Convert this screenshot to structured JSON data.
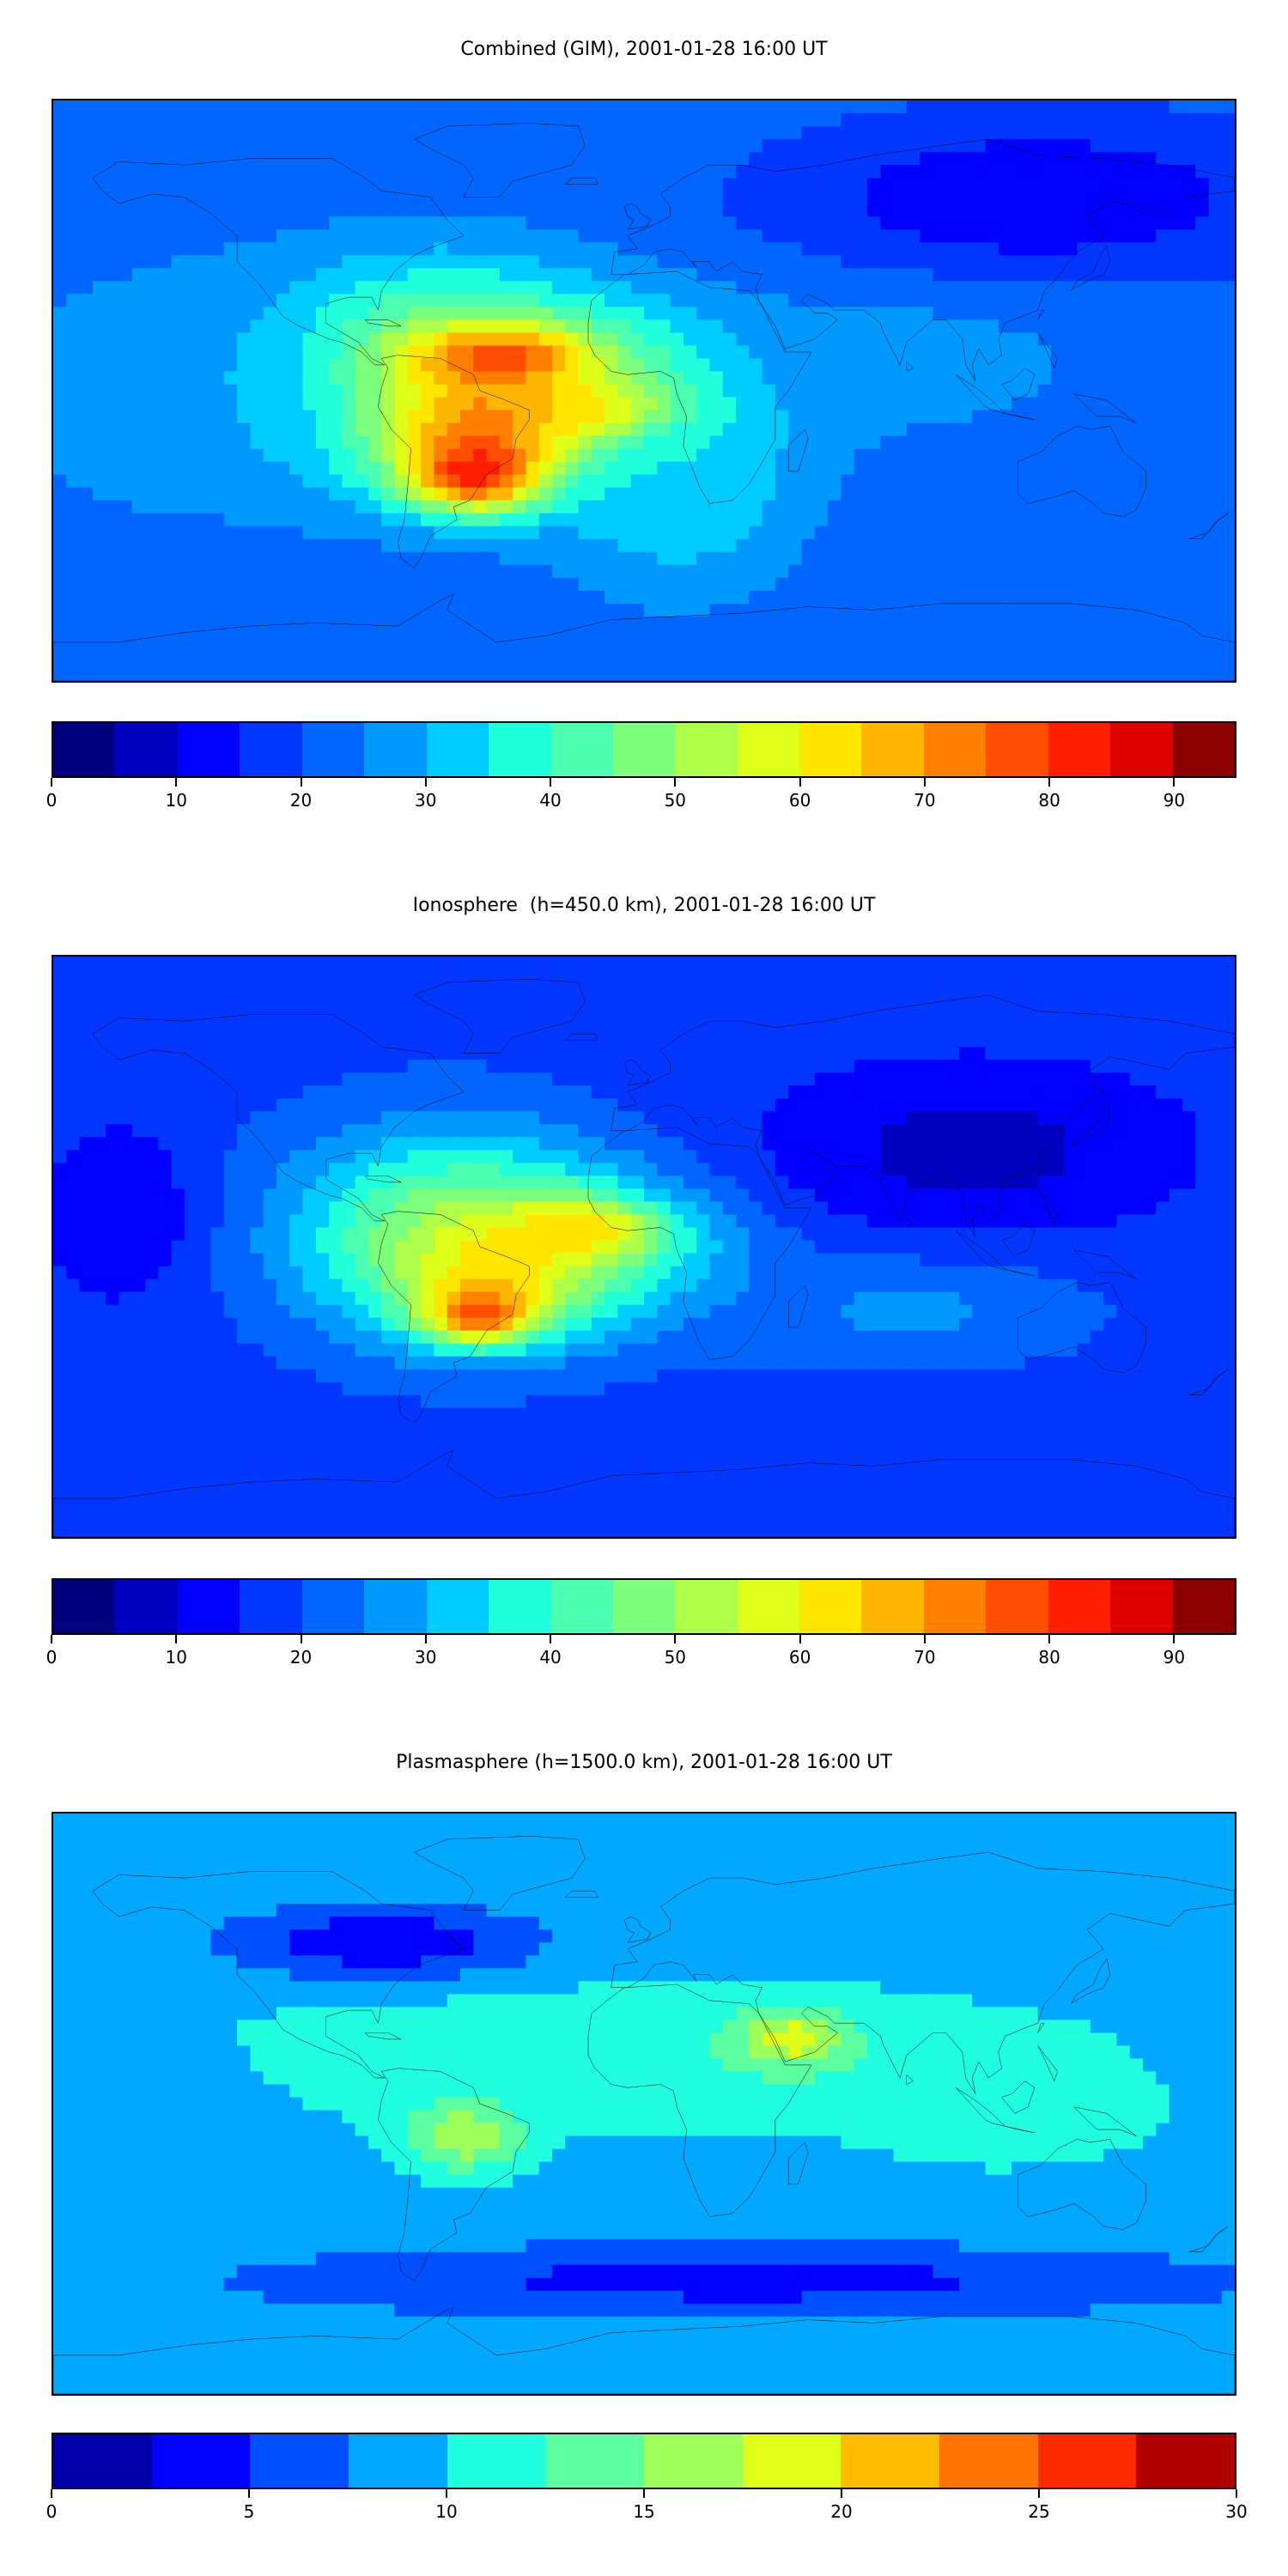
{
  "panels": [
    {
      "title": "Combined (GIM), 2001-01-28 16:00 UT",
      "colorbar": {
        "min": 0,
        "max": 95,
        "step": 5,
        "tick_values": [
          0,
          10,
          20,
          30,
          40,
          50,
          60,
          70,
          80,
          90
        ],
        "tick_labels": [
          "0",
          "10",
          "20",
          "30",
          "40",
          "50",
          "60",
          "70",
          "80",
          "90"
        ],
        "colors": [
          "#00007f",
          "#0000c0",
          "#0000ff",
          "#0036ff",
          "#0066ff",
          "#0099ff",
          "#00ccff",
          "#1fffdc",
          "#4cffb0",
          "#7cff7c",
          "#adff49",
          "#ddff19",
          "#ffe600",
          "#ffb600",
          "#ff8000",
          "#ff4e00",
          "#ff1f00",
          "#df0000",
          "#8b0000"
        ]
      },
      "field": {
        "background": 22,
        "blobs": [
          {
            "lon": -65,
            "lat": 5,
            "rx": 55,
            "ry": 35,
            "value": 55
          },
          {
            "lon": -20,
            "lat": 0,
            "rx": 60,
            "ry": 28,
            "value": 50
          },
          {
            "lon": -50,
            "lat": -10,
            "rx": 35,
            "ry": 22,
            "value": 75
          },
          {
            "lon": -45,
            "lat": 10,
            "rx": 30,
            "ry": 10,
            "value": 82
          },
          {
            "lon": -10,
            "lat": -8,
            "rx": 25,
            "ry": 12,
            "value": 80
          },
          {
            "lon": -50,
            "lat": -25,
            "rx": 22,
            "ry": 12,
            "value": 90
          },
          {
            "lon": 10,
            "lat": -30,
            "rx": 40,
            "ry": 35,
            "value": 35
          },
          {
            "lon": 80,
            "lat": 10,
            "rx": 60,
            "ry": 25,
            "value": 28
          },
          {
            "lon": -140,
            "lat": 0,
            "rx": 60,
            "ry": 40,
            "value": 30
          },
          {
            "lon": 120,
            "lat": 60,
            "rx": 80,
            "ry": 25,
            "value": 10
          }
        ]
      }
    },
    {
      "title": "Ionosphere  (h=450.0 km), 2001-01-28 16:00 UT",
      "colorbar": {
        "min": 0,
        "max": 95,
        "step": 5,
        "tick_values": [
          0,
          10,
          20,
          30,
          40,
          50,
          60,
          70,
          80,
          90
        ],
        "tick_labels": [
          "0",
          "10",
          "20",
          "30",
          "40",
          "50",
          "60",
          "70",
          "80",
          "90"
        ],
        "colors": [
          "#00007f",
          "#0000c0",
          "#0000ff",
          "#0036ff",
          "#0066ff",
          "#0099ff",
          "#00ccff",
          "#1fffdc",
          "#4cffb0",
          "#7cff7c",
          "#adff49",
          "#ddff19",
          "#ffe600",
          "#ffb600",
          "#ff8000",
          "#ff4e00",
          "#ff1f00",
          "#df0000",
          "#8b0000"
        ]
      },
      "field": {
        "background": 18,
        "blobs": [
          {
            "lon": -60,
            "lat": 5,
            "rx": 55,
            "ry": 35,
            "value": 45
          },
          {
            "lon": -20,
            "lat": 0,
            "rx": 55,
            "ry": 25,
            "value": 42
          },
          {
            "lon": -45,
            "lat": -5,
            "rx": 35,
            "ry": 22,
            "value": 62
          },
          {
            "lon": -20,
            "lat": 5,
            "rx": 25,
            "ry": 10,
            "value": 66
          },
          {
            "lon": -50,
            "lat": -20,
            "rx": 18,
            "ry": 10,
            "value": 78
          },
          {
            "lon": 100,
            "lat": 30,
            "rx": 70,
            "ry": 30,
            "value": 8
          },
          {
            "lon": -160,
            "lat": 10,
            "rx": 25,
            "ry": 30,
            "value": 10
          },
          {
            "lon": 80,
            "lat": -20,
            "rx": 60,
            "ry": 18,
            "value": 26
          }
        ]
      }
    },
    {
      "title": "Plasmasphere (h=1500.0 km), 2001-01-28 16:00 UT",
      "colorbar": {
        "min": 0,
        "max": 30,
        "step": 2.5,
        "tick_values": [
          0,
          5,
          10,
          15,
          20,
          25,
          30
        ],
        "tick_labels": [
          "0",
          "5",
          "10",
          "15",
          "20",
          "25",
          "30"
        ],
        "colors": [
          "#0000a8",
          "#0000ff",
          "#0050ff",
          "#00a8ff",
          "#1fffe0",
          "#5cffa0",
          "#9dff5a",
          "#e0ff18",
          "#ffbb00",
          "#ff7300",
          "#ff2a00",
          "#b00000"
        ]
      },
      "field": {
        "background": 9,
        "blobs": [
          {
            "lon": 0,
            "lat": 15,
            "rx": 150,
            "ry": 25,
            "value": 12
          },
          {
            "lon": 45,
            "lat": 20,
            "rx": 18,
            "ry": 10,
            "value": 19
          },
          {
            "lon": -55,
            "lat": -10,
            "rx": 20,
            "ry": 12,
            "value": 17
          },
          {
            "lon": 110,
            "lat": -5,
            "rx": 45,
            "ry": 15,
            "value": 12
          },
          {
            "lon": -150,
            "lat": 0,
            "rx": 30,
            "ry": 20,
            "value": 8
          },
          {
            "lon": -80,
            "lat": 50,
            "rx": 50,
            "ry": 12,
            "value": 3
          },
          {
            "lon": 30,
            "lat": -55,
            "rx": 160,
            "ry": 12,
            "value": 4
          }
        ]
      }
    }
  ]
}
